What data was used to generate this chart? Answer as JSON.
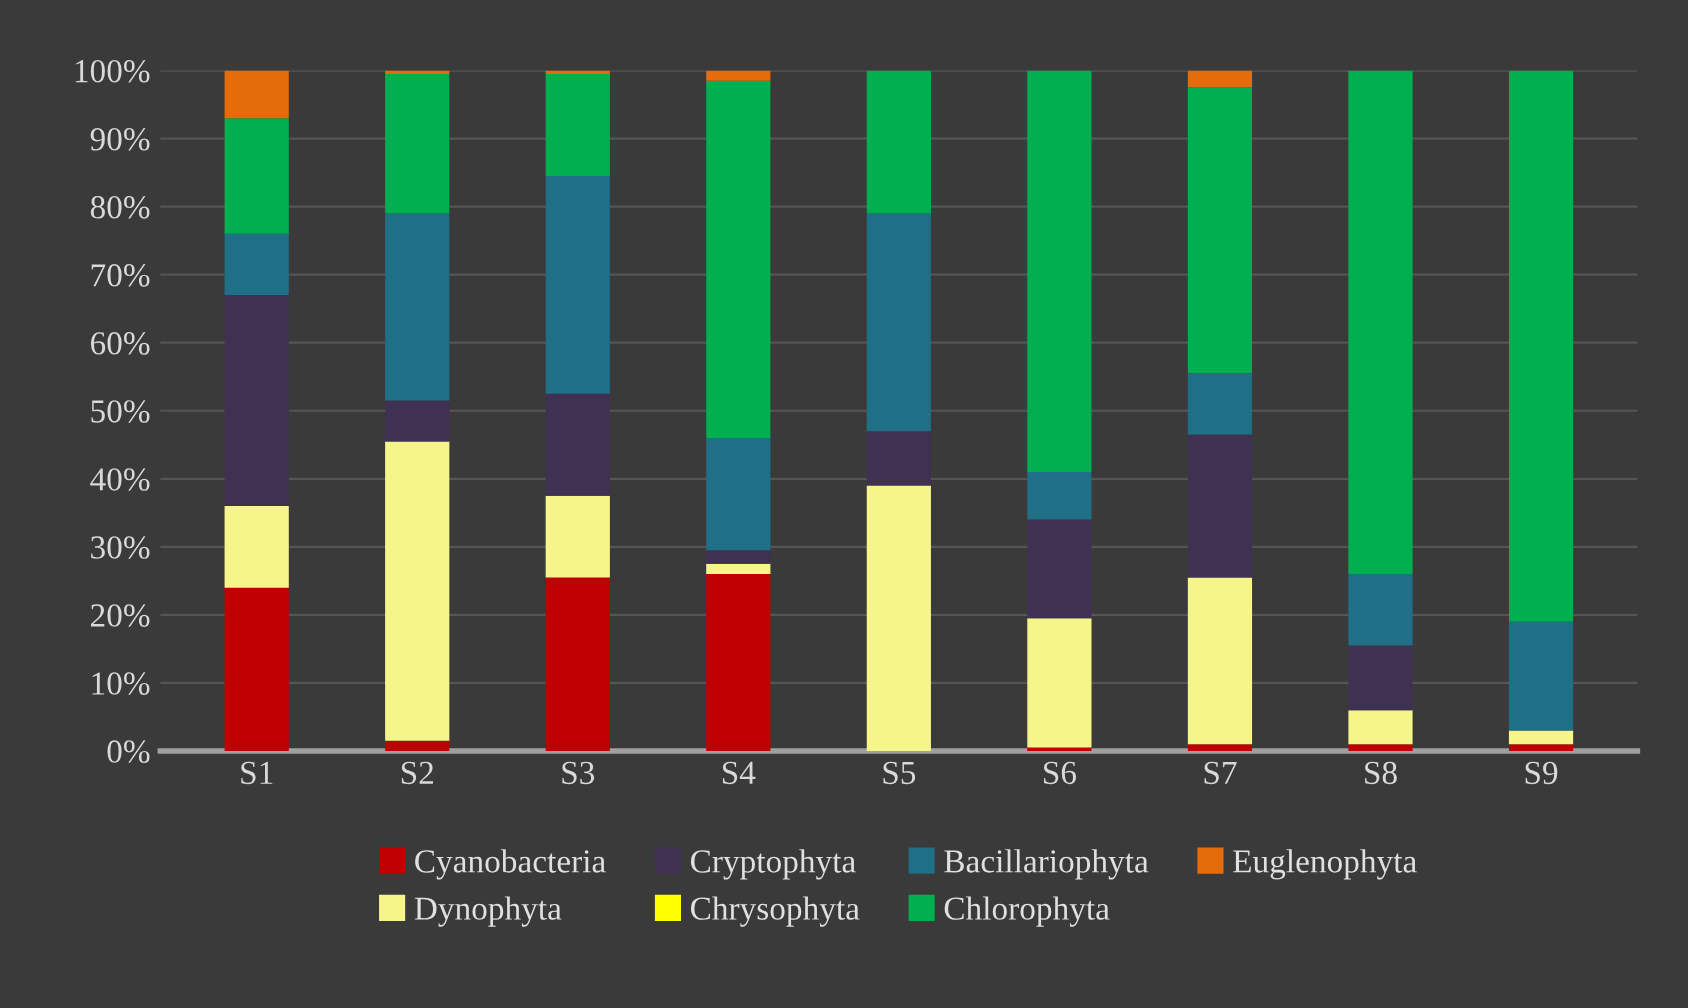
{
  "chart_data": {
    "type": "bar",
    "stacked": true,
    "categories": [
      "S1",
      "S2",
      "S3",
      "S4",
      "S5",
      "S6",
      "S7",
      "S8",
      "S9"
    ],
    "series": [
      {
        "name": "Cyanobacteria",
        "color": "#c00000",
        "values": [
          24,
          1.5,
          25.5,
          26,
          0,
          0.5,
          1,
          1,
          1
        ]
      },
      {
        "name": "Dynophyta",
        "color": "#f5f58a",
        "values": [
          12,
          44,
          12,
          1.5,
          39,
          19,
          24.5,
          5,
          2
        ]
      },
      {
        "name": "Cryptophyta",
        "color": "#3f3151",
        "values": [
          31,
          6,
          15,
          2,
          8,
          14.5,
          21,
          9.5,
          0
        ]
      },
      {
        "name": "Chrysophyta",
        "color": "#ffff00",
        "values": [
          0,
          0,
          0,
          0,
          0,
          0,
          0,
          0,
          0
        ]
      },
      {
        "name": "Bacillariophyta",
        "color": "#1f6f86",
        "values": [
          9,
          27.5,
          32,
          16.5,
          32,
          7,
          9,
          10.5,
          16
        ]
      },
      {
        "name": "Chlorophyta",
        "color": "#00b050",
        "values": [
          17,
          20.5,
          15,
          52.5,
          21,
          59,
          42,
          74,
          81
        ]
      },
      {
        "name": "Euglenophyta",
        "color": "#e46c0a",
        "values": [
          7,
          0.5,
          0.5,
          1.5,
          0,
          0,
          2.5,
          0,
          0
        ]
      }
    ],
    "ylim": [
      0,
      100
    ],
    "yticks": [
      {
        "value": 0,
        "label": "0%"
      },
      {
        "value": 10,
        "label": "10%"
      },
      {
        "value": 20,
        "label": "20%"
      },
      {
        "value": 30,
        "label": "30%"
      },
      {
        "value": 40,
        "label": "40%"
      },
      {
        "value": 50,
        "label": "50%"
      },
      {
        "value": 60,
        "label": "60%"
      },
      {
        "value": 70,
        "label": "70%"
      },
      {
        "value": 80,
        "label": "80%"
      },
      {
        "value": 90,
        "label": "90%"
      },
      {
        "value": 100,
        "label": "100%"
      }
    ],
    "grid": "y",
    "legend": "bottom"
  }
}
